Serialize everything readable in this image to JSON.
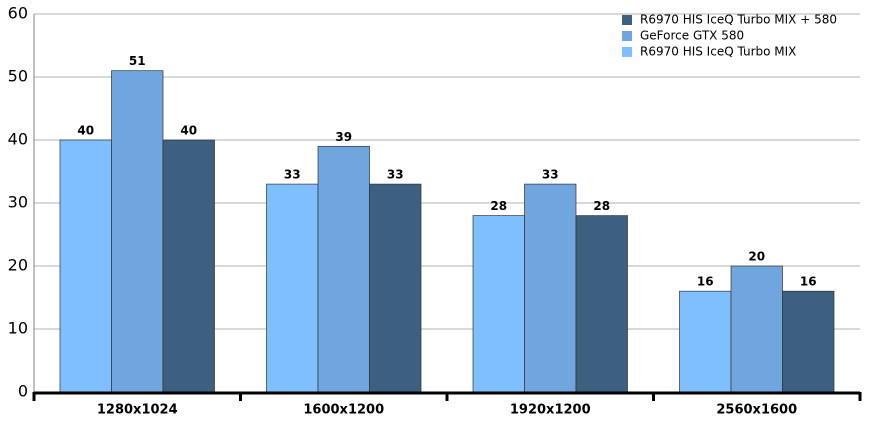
{
  "chart_data": {
    "type": "bar",
    "categories": [
      "1280x1024",
      "1600x1200",
      "1920x1200",
      "2560x1600"
    ],
    "series": [
      {
        "name": "R6970 HIS IceQ Turbo MIX",
        "color": "#7fbfff",
        "values": [
          40,
          33,
          28,
          16
        ]
      },
      {
        "name": "GeForce GTX 580",
        "color": "#70a6dd",
        "values": [
          51,
          39,
          33,
          20
        ]
      },
      {
        "name": "R6970 HIS IceQ Turbo MIX + 580",
        "color": "#3d5f80",
        "values": [
          40,
          33,
          28,
          16
        ]
      }
    ],
    "ylim": [
      0,
      60
    ],
    "yticks": [
      0,
      10,
      20,
      30,
      40,
      50,
      60
    ],
    "grid": true,
    "legend": "upper-right"
  }
}
